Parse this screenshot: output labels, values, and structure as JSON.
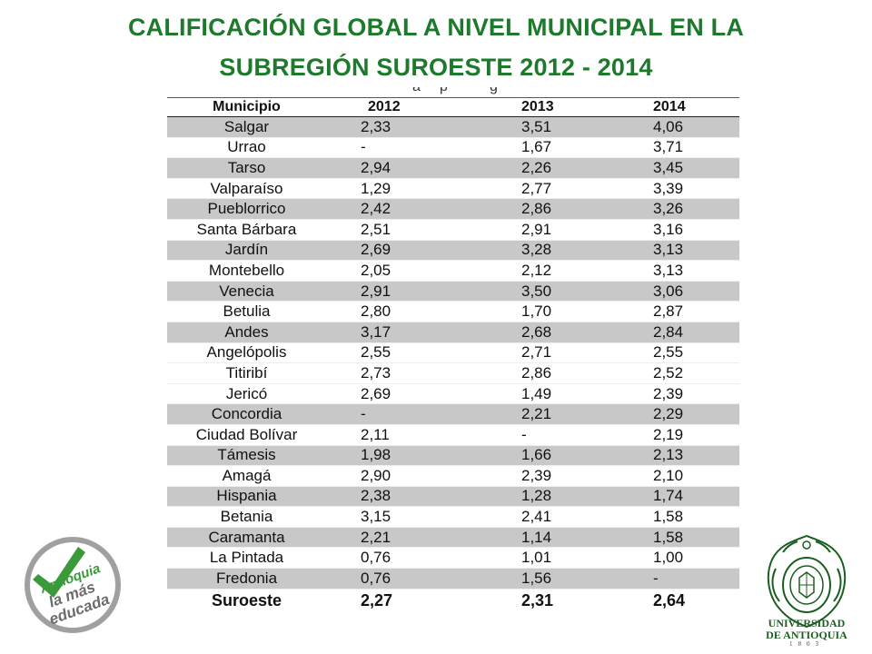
{
  "title": {
    "line1": "CALIFICACIÓN GLOBAL A NIVEL MUNICIPAL EN LA",
    "line2": "SUBREGIÓN SUROESTE 2012 - 2014"
  },
  "crop_fragment": [
    "a",
    "p",
    "g"
  ],
  "table": {
    "headers": [
      "Municipio",
      "2012",
      "2013",
      "2014"
    ],
    "rows": [
      [
        "Salgar",
        "2,33",
        "3,51",
        "4,06"
      ],
      [
        "Urrao",
        "-",
        "1,67",
        "3,71"
      ],
      [
        "Tarso",
        "2,94",
        "2,26",
        "3,45"
      ],
      [
        "Valparaíso",
        "1,29",
        "2,77",
        "3,39"
      ],
      [
        "Pueblorrico",
        "2,42",
        "2,86",
        "3,26"
      ],
      [
        "Santa Bárbara",
        "2,51",
        "2,91",
        "3,16"
      ],
      [
        "Jardín",
        "2,69",
        "3,28",
        "3,13"
      ],
      [
        "Montebello",
        "2,05",
        "2,12",
        "3,13"
      ],
      [
        "Venecia",
        "2,91",
        "3,50",
        "3,06"
      ],
      [
        "Betulia",
        "2,80",
        "1,70",
        "2,87"
      ],
      [
        "Andes",
        "3,17",
        "2,68",
        "2,84"
      ],
      [
        "Angelópolis",
        "2,55",
        "2,71",
        "2,55"
      ],
      [
        "Titiribí",
        "2,73",
        "2,86",
        "2,52"
      ],
      [
        "Jericó",
        "2,69",
        "1,49",
        "2,39"
      ],
      [
        "Concordia",
        "-",
        "2,21",
        "2,29"
      ],
      [
        "Ciudad Bolívar",
        "2,11",
        "-",
        "2,19"
      ],
      [
        "Támesis",
        "1,98",
        "1,66",
        "2,13"
      ],
      [
        "Amagá",
        "2,90",
        "2,39",
        "2,10"
      ],
      [
        "Hispania",
        "2,38",
        "1,28",
        "1,74"
      ],
      [
        "Betania",
        "3,15",
        "2,41",
        "1,58"
      ],
      [
        "Caramanta",
        "2,21",
        "1,14",
        "1,58"
      ],
      [
        "La Pintada",
        "0,76",
        "1,01",
        "1,00"
      ],
      [
        "Fredonia",
        "0,76",
        "1,56",
        "-"
      ]
    ],
    "shaded_rows": [
      0,
      2,
      4,
      6,
      8,
      10,
      14,
      16,
      18,
      20,
      22
    ],
    "total": [
      "Suroeste",
      "2,27",
      "2,31",
      "2,64"
    ],
    "shade_color": "#c8c8c8"
  },
  "logos": {
    "left": {
      "icon": "checkmark-badge-icon",
      "lines": [
        "Antioquia",
        "la más",
        "educada"
      ],
      "color": "#3a9a3a",
      "ring_color": "#9a9a9a"
    },
    "right": {
      "icon": "university-seal-icon",
      "name_lines": [
        "UNIVERSIDAD",
        "DE ANTIOQUIA"
      ],
      "year": "1803",
      "color": "#1b5e20"
    }
  },
  "accent_color": "#1d7a2c"
}
